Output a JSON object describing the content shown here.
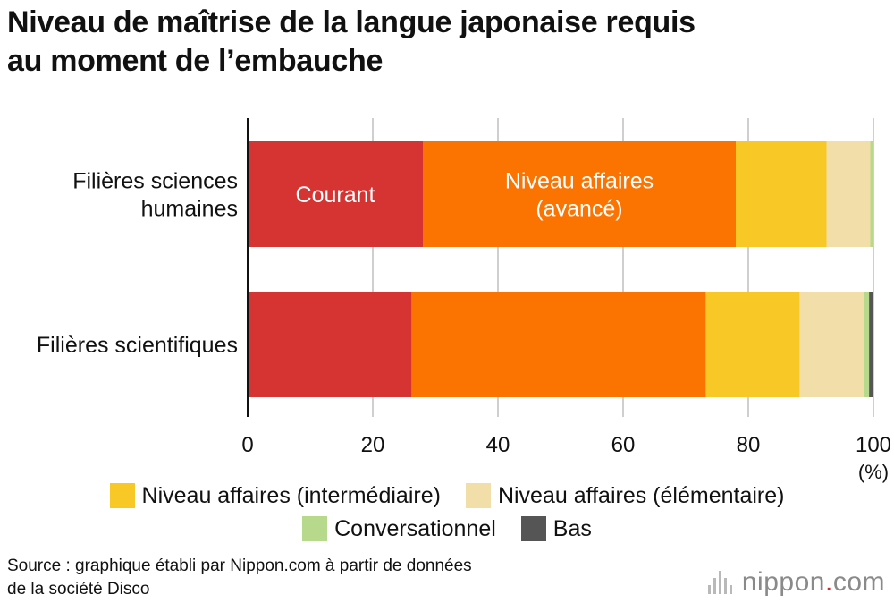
{
  "chart_data": {
    "type": "bar",
    "orientation": "horizontal",
    "stacked": true,
    "title_lines": [
      "Niveau de maîtrise de la langue japonaise requis",
      "au moment de l’embauche"
    ],
    "categories": [
      {
        "lines": [
          "Filières sciences",
          "humaines"
        ]
      },
      {
        "lines": [
          "Filières scientifiques"
        ]
      }
    ],
    "series": [
      {
        "name": "Courant",
        "color": "#d63333",
        "values": [
          28,
          26.2
        ]
      },
      {
        "name": "Niveau affaires (avancé)",
        "color": "#fb7300",
        "values": [
          50,
          47
        ]
      },
      {
        "name": "Niveau affaires (intermédiaire)",
        "color": "#f8c926",
        "values": [
          14.5,
          15
        ]
      },
      {
        "name": "Niveau affaires (élémentaire)",
        "color": "#f1dea8",
        "values": [
          7,
          10.3
        ]
      },
      {
        "name": "Conversationnel",
        "color": "#b6d98b",
        "values": [
          0.5,
          0.8
        ]
      },
      {
        "name": "Bas",
        "color": "#555555",
        "values": [
          0,
          0.7
        ]
      }
    ],
    "bar_labels": [
      {
        "series": 0,
        "category": 0,
        "lines": [
          "Courant"
        ]
      },
      {
        "series": 1,
        "category": 0,
        "lines": [
          "Niveau affaires",
          "(avancé)"
        ]
      }
    ],
    "x_ticks": [
      0,
      20,
      40,
      60,
      80,
      100
    ],
    "x_unit": "(%)",
    "xlim": [
      0,
      100
    ],
    "grid": "vertical",
    "legend_position": "bottom"
  },
  "legend_rows": [
    [
      {
        "label": "Niveau affaires (intermédiaire)",
        "color": "#f8c926"
      },
      {
        "label": "Niveau affaires (élémentaire)",
        "color": "#f1dea8"
      }
    ],
    [
      {
        "label": "Conversationnel",
        "color": "#b6d98b"
      },
      {
        "label": "Bas",
        "color": "#555555"
      }
    ]
  ],
  "source_lines": [
    "Source : graphique établi par Nippon.com à partir de données",
    "de la société Disco"
  ],
  "brand": {
    "name": "nippon",
    "dot": ".",
    "suffix": "com"
  }
}
